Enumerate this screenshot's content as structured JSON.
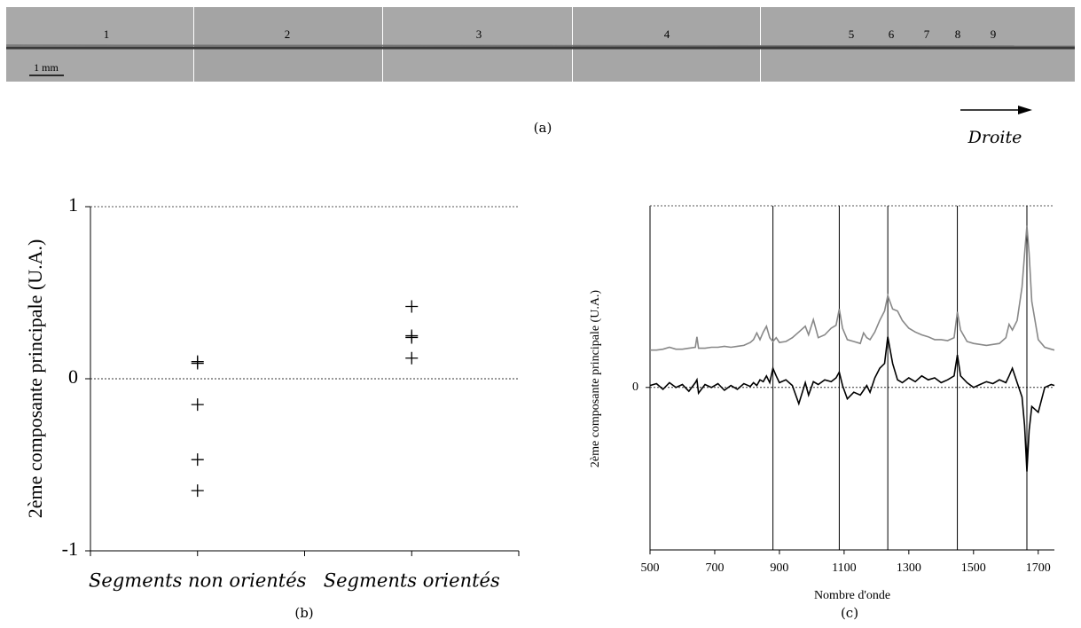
{
  "panel_a": {
    "labels": [
      "1",
      "2",
      "3",
      "4",
      "5",
      "6",
      "7",
      "8",
      "9"
    ],
    "scale_bar": "1 mm",
    "caption": "(a)",
    "direction": "Droite"
  },
  "chart_data": [
    {
      "type": "scatter",
      "categories": [
        "Segments non orientés",
        "Segments orientés"
      ],
      "values": [
        [
          0.1,
          0.09,
          -0.15,
          -0.47,
          -0.65
        ],
        [
          0.42,
          0.25,
          0.24,
          0.12
        ]
      ],
      "ylabel": "2ème composante principale (U.A.)",
      "caption": "(b)",
      "ylim": [
        -1,
        1
      ],
      "yticks": [
        -1,
        0,
        1
      ],
      "color": "#000000",
      "zero_line": true
    },
    {
      "type": "line",
      "xlabel": "Nombre d'onde",
      "ylabel": "2ème composante principale (U.A.)",
      "caption": "(c)",
      "xlim": [
        500,
        1750
      ],
      "xticks": [
        500,
        700,
        900,
        1100,
        1300,
        1500,
        1700
      ],
      "ylim": [
        -1.7,
        1.9
      ],
      "yticks": [
        0
      ],
      "zero_line": true,
      "vlines": [
        880,
        1085,
        1235,
        1450,
        1665
      ],
      "x": [
        500,
        520,
        540,
        560,
        580,
        600,
        620,
        640,
        645,
        650,
        670,
        690,
        710,
        730,
        750,
        770,
        790,
        810,
        820,
        830,
        840,
        850,
        860,
        870,
        880,
        890,
        900,
        920,
        940,
        960,
        980,
        990,
        1005,
        1020,
        1040,
        1060,
        1075,
        1085,
        1095,
        1110,
        1130,
        1150,
        1160,
        1170,
        1180,
        1195,
        1210,
        1225,
        1235,
        1250,
        1265,
        1280,
        1300,
        1320,
        1340,
        1360,
        1380,
        1400,
        1420,
        1440,
        1450,
        1460,
        1480,
        1500,
        1520,
        1540,
        1560,
        1580,
        1600,
        1610,
        1620,
        1635,
        1650,
        1658,
        1665,
        1672,
        1680,
        1700,
        1720,
        1740,
        1750
      ],
      "series": [
        {
          "color": "#888888",
          "values": [
            0.39,
            0.39,
            0.4,
            0.42,
            0.4,
            0.4,
            0.41,
            0.42,
            0.53,
            0.41,
            0.41,
            0.42,
            0.42,
            0.43,
            0.42,
            0.43,
            0.44,
            0.47,
            0.5,
            0.57,
            0.5,
            0.58,
            0.64,
            0.52,
            0.48,
            0.52,
            0.47,
            0.48,
            0.52,
            0.58,
            0.64,
            0.55,
            0.71,
            0.52,
            0.55,
            0.62,
            0.65,
            0.82,
            0.62,
            0.5,
            0.48,
            0.46,
            0.57,
            0.52,
            0.5,
            0.58,
            0.7,
            0.8,
            0.96,
            0.82,
            0.8,
            0.7,
            0.62,
            0.58,
            0.55,
            0.53,
            0.5,
            0.5,
            0.49,
            0.52,
            0.79,
            0.6,
            0.48,
            0.46,
            0.45,
            0.44,
            0.45,
            0.46,
            0.52,
            0.66,
            0.6,
            0.7,
            1.05,
            1.4,
            1.69,
            1.4,
            0.9,
            0.5,
            0.42,
            0.4,
            0.39
          ]
        },
        {
          "color": "#000000",
          "values": [
            0.02,
            0.04,
            -0.02,
            0.05,
            0.0,
            0.03,
            -0.04,
            0.05,
            0.08,
            -0.06,
            0.03,
            0.0,
            0.04,
            -0.03,
            0.02,
            -0.02,
            0.04,
            0.01,
            0.05,
            0.02,
            0.08,
            0.06,
            0.12,
            0.05,
            0.2,
            0.12,
            0.05,
            0.08,
            0.02,
            -0.17,
            0.05,
            -0.08,
            0.06,
            0.03,
            0.08,
            0.06,
            0.1,
            0.16,
            0.02,
            -0.12,
            -0.05,
            -0.08,
            -0.03,
            0.02,
            -0.05,
            0.1,
            0.2,
            0.25,
            0.53,
            0.25,
            0.08,
            0.05,
            0.1,
            0.06,
            0.12,
            0.08,
            0.1,
            0.05,
            0.08,
            0.12,
            0.34,
            0.12,
            0.05,
            0.0,
            0.03,
            0.06,
            0.04,
            0.08,
            0.05,
            0.12,
            0.2,
            0.05,
            -0.1,
            -0.4,
            -0.88,
            -0.45,
            -0.2,
            -0.26,
            0.0,
            0.03,
            0.02
          ]
        }
      ]
    }
  ]
}
